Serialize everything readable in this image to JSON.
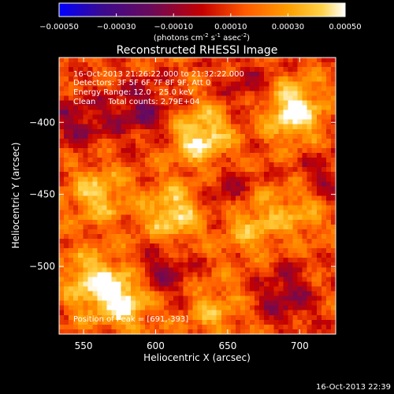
{
  "chart_data": {
    "type": "heatmap",
    "title": "Reconstructed RHESSI Image",
    "xlabel": "Heliocentric X (arcsec)",
    "ylabel": "Heliocentric Y (arcsec)",
    "xlim": [
      533,
      725
    ],
    "ylim": [
      -547,
      -355
    ],
    "x_ticks": [
      550,
      600,
      650,
      700
    ],
    "y_ticks": [
      -500,
      -450,
      -400
    ],
    "x_tick_labels": [
      "550",
      "600",
      "650",
      "700"
    ],
    "y_tick_labels": [
      "-500",
      "-450",
      "-400"
    ],
    "colorbar": {
      "min": -0.0005,
      "max": 0.0005,
      "ticks": [
        -0.0005,
        -0.0003,
        -0.0001,
        0.0001,
        0.0003,
        0.0005
      ],
      "tick_labels": [
        "-0.00050",
        "-0.00030",
        "-0.00010",
        "0.00010",
        "0.00030",
        "0.00050"
      ],
      "unit_label": "(photons cm-2 s-1 asec-2)",
      "colormap": [
        "#0000ff",
        "#3b0a8f",
        "#6a0a5a",
        "#c40000",
        "#ff5a00",
        "#ff9e00",
        "#ffd34a",
        "#ffffff"
      ]
    },
    "annotations": [
      "16-Oct-2013 21:26:22.000 to 21:32:22.000",
      "Detectors: 3F 5F 6F 7F 8F 9F, Att 0",
      "Energy Range: 12.0 - 25.0 keV",
      "Clean     Total counts: 2.79E+04"
    ],
    "peak_label": "Position of Peak = [691,-393]",
    "peak": [
      691,
      -393
    ],
    "peak_value": 0.0005,
    "bright_regions": [
      {
        "x": 695,
        "y": -392,
        "value": 0.00048
      },
      {
        "x": 632,
        "y": -410,
        "value": 0.00042
      },
      {
        "x": 578,
        "y": -523,
        "value": 0.00044
      },
      {
        "x": 612,
        "y": -464,
        "value": 0.00038
      },
      {
        "x": 560,
        "y": -450,
        "value": 0.00032
      },
      {
        "x": 555,
        "y": -510,
        "value": 0.00034
      },
      {
        "x": 665,
        "y": -470,
        "value": 0.0003
      },
      {
        "x": 700,
        "y": -460,
        "value": 0.00026
      },
      {
        "x": 640,
        "y": -530,
        "value": 0.00024
      }
    ],
    "dim_regions": [
      {
        "x": 590,
        "y": -392,
        "value": -0.0002
      },
      {
        "x": 545,
        "y": -400,
        "value": -0.00016
      },
      {
        "x": 605,
        "y": -505,
        "value": -0.00018
      },
      {
        "x": 650,
        "y": -450,
        "value": -0.00014
      },
      {
        "x": 690,
        "y": -520,
        "value": -0.00016
      },
      {
        "x": 715,
        "y": -440,
        "value": -0.00012
      },
      {
        "x": 665,
        "y": -375,
        "value": -0.0001
      }
    ]
  },
  "footer": {
    "timestamp": "16-Oct-2013 22:39"
  }
}
